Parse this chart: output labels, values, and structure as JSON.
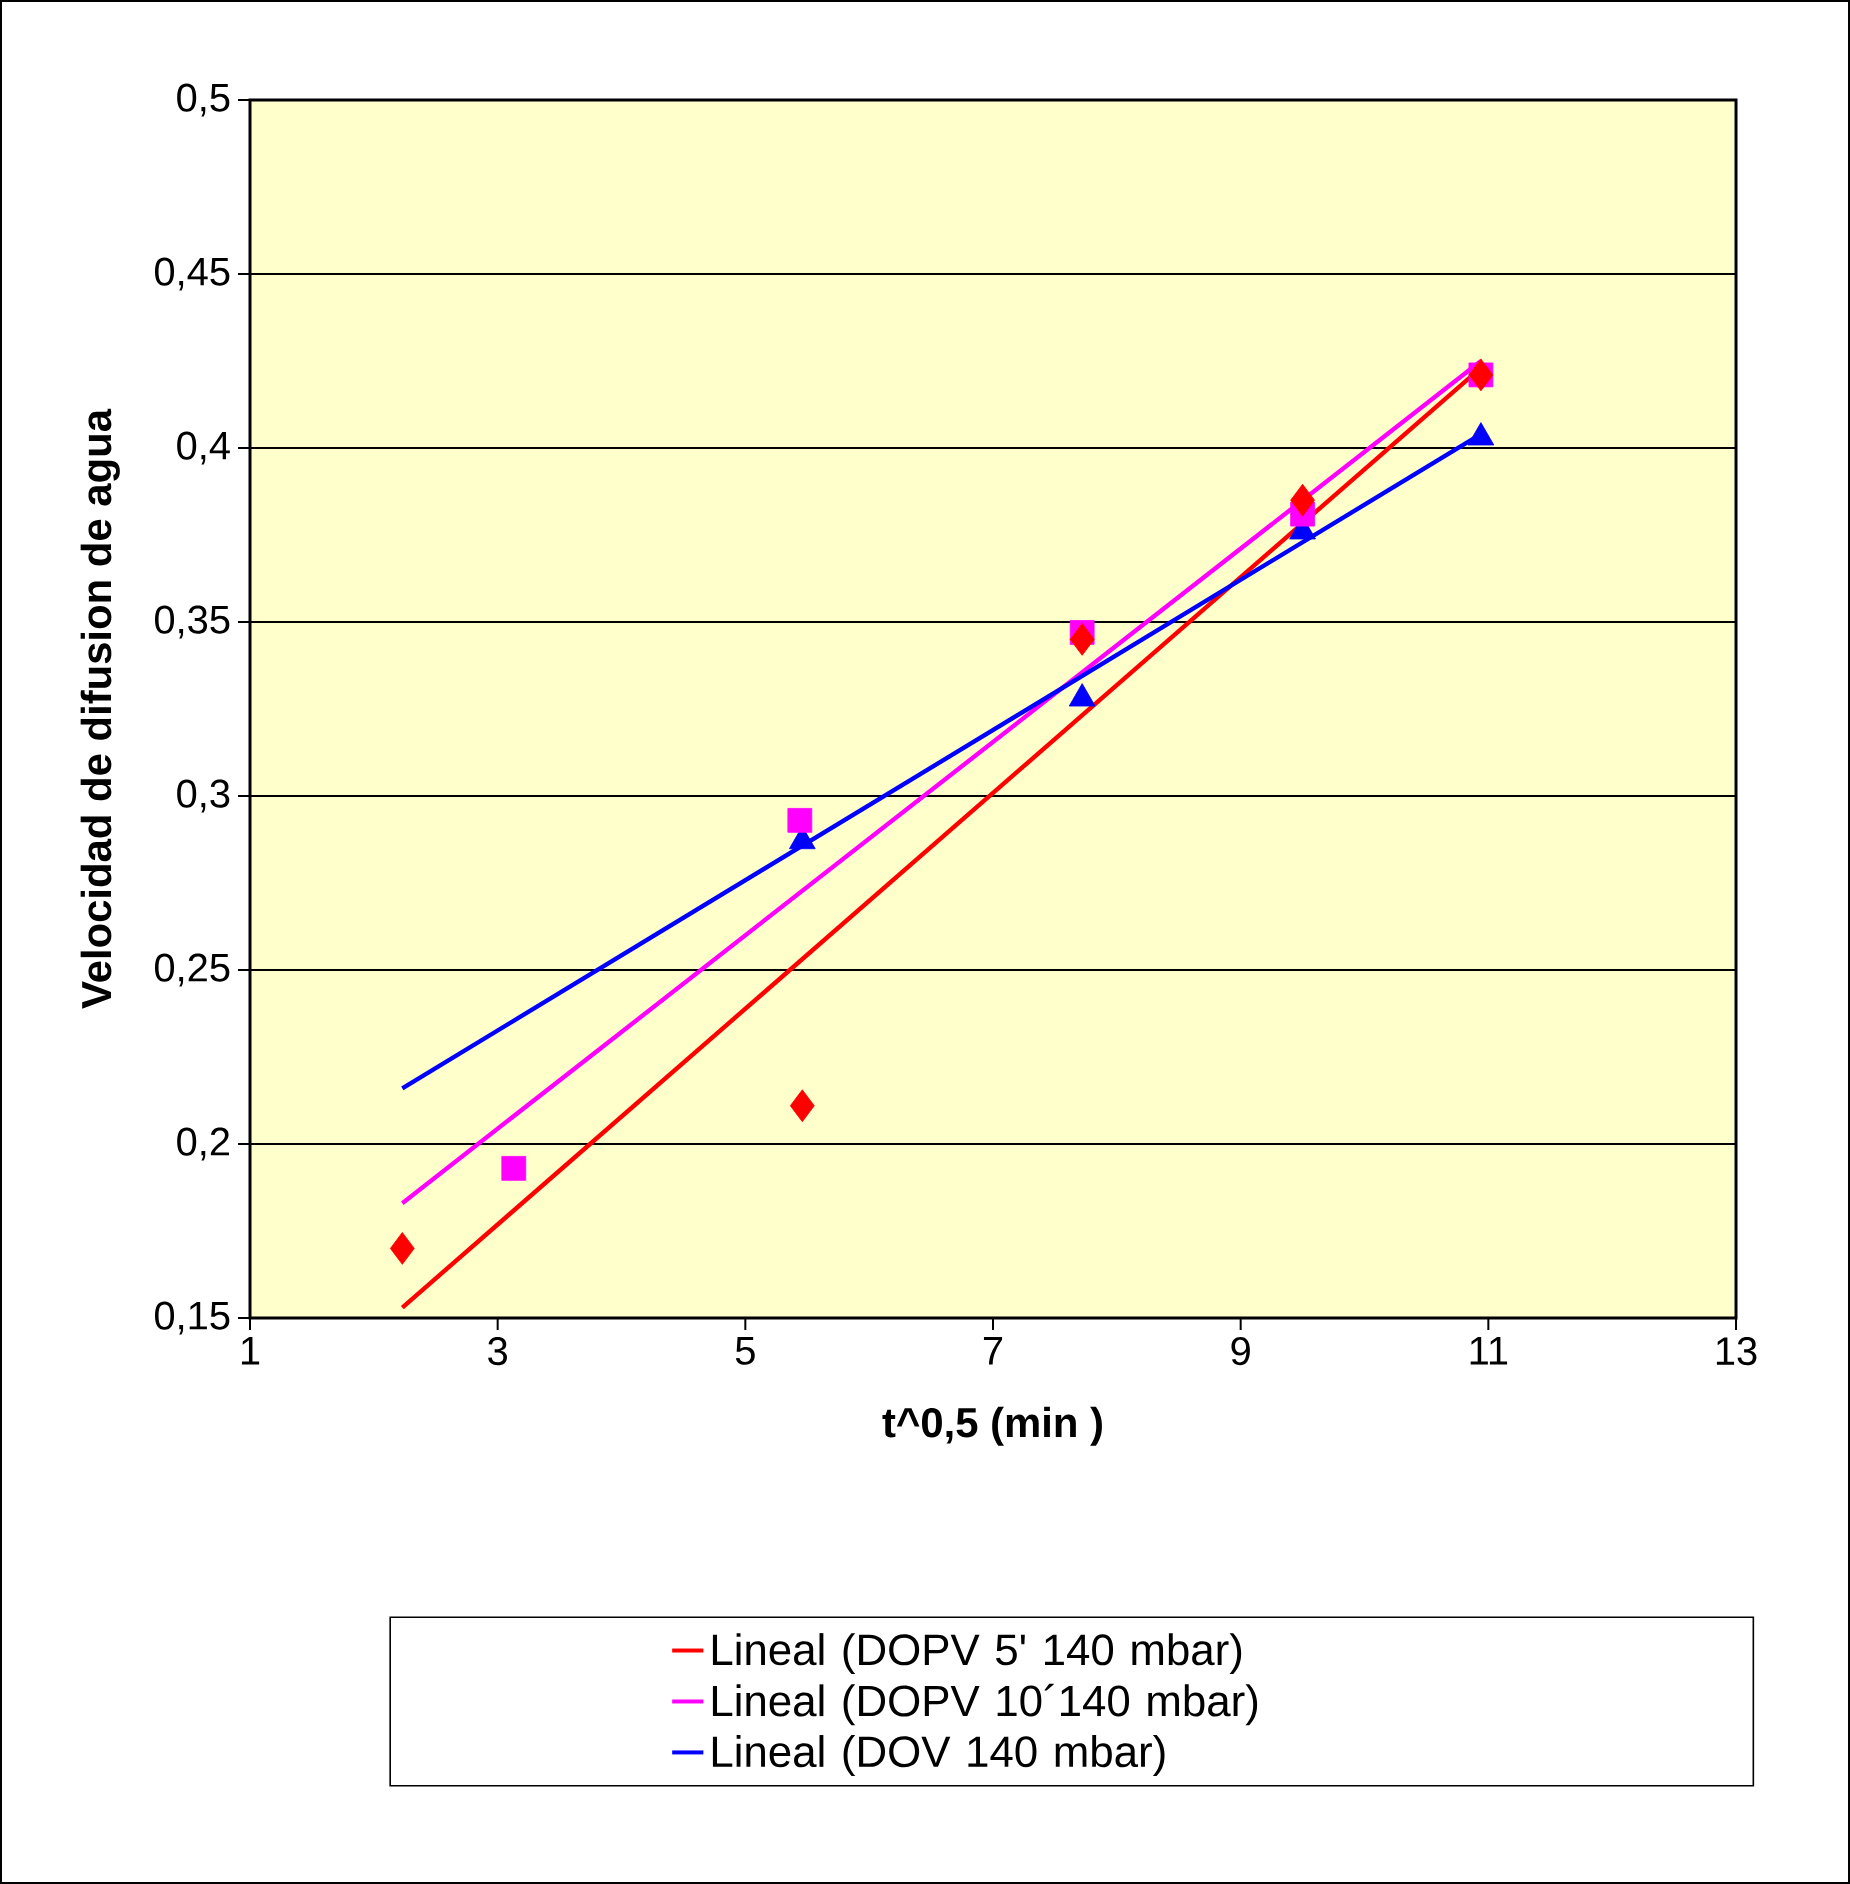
{
  "chart_data": {
    "type": "scatter",
    "xlabel": "t^0,5 (min )",
    "ylabel": "Velocidad de difusion de agua",
    "xlim": [
      1,
      13
    ],
    "ylim": [
      0.15,
      0.5
    ],
    "xticks": [
      1,
      3,
      5,
      7,
      9,
      11,
      13
    ],
    "yticks": [
      {
        "value": 0.15,
        "label": "0,15"
      },
      {
        "value": 0.2,
        "label": "0,2"
      },
      {
        "value": 0.25,
        "label": "0,25"
      },
      {
        "value": 0.3,
        "label": "0,3"
      },
      {
        "value": 0.35,
        "label": "0,35"
      },
      {
        "value": 0.4,
        "label": "0,4"
      },
      {
        "value": 0.45,
        "label": "0,45"
      },
      {
        "value": 0.5,
        "label": "0,5"
      }
    ],
    "grid": "y",
    "legend": "bottom",
    "series": [
      {
        "color": "#ff0000",
        "marker": "diamond",
        "x": [
          2.23,
          5.46,
          7.72,
          9.5,
          10.94
        ],
        "values": [
          0.17,
          0.211,
          0.345,
          0.385,
          0.421
        ]
      },
      {
        "color": "#ff00ff",
        "marker": "square",
        "x": [
          3.13,
          5.44,
          7.72,
          9.5,
          10.94
        ],
        "values": [
          0.193,
          0.293,
          0.347,
          0.381,
          0.421
        ]
      },
      {
        "color": "#0000ff",
        "marker": "triangle",
        "x": [
          5.46,
          7.72,
          9.5,
          10.94
        ],
        "values": [
          0.287,
          0.328,
          0.376,
          0.403
        ]
      },
      {
        "type": "line",
        "name": "Lineal (DOPV 5' 140 mbar)",
        "color": "#ff0000",
        "marker": "none",
        "x": [
          2.23,
          10.94
        ],
        "values": [
          0.153,
          0.423
        ]
      },
      {
        "type": "line",
        "name": "Lineal (DOPV 10´140  mbar)",
        "color": "#ff00ff",
        "marker": "none",
        "x": [
          2.23,
          10.94
        ],
        "values": [
          0.183,
          0.425
        ]
      },
      {
        "type": "line",
        "name": "Lineal (DOV 140  mbar)",
        "color": "#0000ff",
        "marker": "none",
        "x": [
          2.23,
          10.94
        ],
        "values": [
          0.216,
          0.404
        ]
      }
    ]
  }
}
